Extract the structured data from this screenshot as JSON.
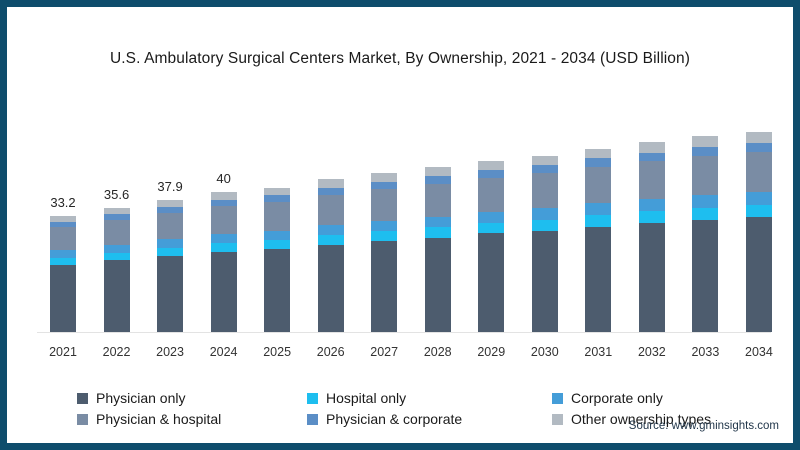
{
  "frame": {
    "border_color": "#0E4D6C",
    "background": "#FFFFFF"
  },
  "header": {
    "title": "U.S. Ambulatory Surgical Centers Market, By Ownership, 2021 - 2034 (USD Billion)"
  },
  "footer": {
    "source": "Source: www.gminsights.com"
  },
  "chart_data": {
    "type": "bar",
    "stacked": true,
    "title": "U.S. Ambulatory Surgical Centers Market, By Ownership, 2021 - 2034 (USD Billion)",
    "units": "USD Billion",
    "grid": false,
    "legend_position": "bottom",
    "ylim": [
      0,
      60
    ],
    "categories": [
      "2021",
      "2022",
      "2023",
      "2024",
      "2025",
      "2026",
      "2027",
      "2028",
      "2029",
      "2030",
      "2031",
      "2032",
      "2033",
      "2034"
    ],
    "bar_total_labels": [
      "33.2",
      "35.6",
      "37.9",
      "40",
      "",
      "",
      "",
      "",
      "",
      "",
      "",
      "",
      "",
      ""
    ],
    "estimated_totals": [
      33.2,
      35.6,
      37.9,
      40,
      41.3,
      43.5,
      45.3,
      47,
      49,
      50.5,
      52.4,
      54.2,
      55.9,
      57.1
    ],
    "series": [
      {
        "name": "Physician only",
        "color": "#4D5C6E",
        "values": [
          19.1,
          20.5,
          21.8,
          23.0,
          23.7,
          25.0,
          26.0,
          27.0,
          28.2,
          29.0,
          30.1,
          31.2,
          32.1,
          32.8
        ]
      },
      {
        "name": "Hospital only",
        "color": "#1EBEEF",
        "values": [
          2.0,
          2.2,
          2.3,
          2.4,
          2.5,
          2.7,
          2.8,
          2.9,
          3.0,
          3.1,
          3.2,
          3.3,
          3.4,
          3.5
        ]
      },
      {
        "name": "Corporate only",
        "color": "#449DD8",
        "values": [
          2.2,
          2.3,
          2.5,
          2.6,
          2.7,
          2.9,
          3.0,
          3.1,
          3.2,
          3.3,
          3.5,
          3.6,
          3.7,
          3.8
        ]
      },
      {
        "name": "Physician & hospital",
        "color": "#7A8CA4",
        "values": [
          6.6,
          7.0,
          7.5,
          7.9,
          8.2,
          8.6,
          9.0,
          9.3,
          9.7,
          10.0,
          10.4,
          10.7,
          11.1,
          11.3
        ]
      },
      {
        "name": "Physician & corporate",
        "color": "#5B8EC6",
        "values": [
          1.5,
          1.6,
          1.7,
          1.8,
          1.9,
          2.0,
          2.1,
          2.2,
          2.3,
          2.3,
          2.4,
          2.5,
          2.6,
          2.6
        ]
      },
      {
        "name": "Other ownership types",
        "color": "#B2BAC2",
        "values": [
          1.8,
          1.9,
          2.0,
          2.2,
          2.2,
          2.4,
          2.4,
          2.5,
          2.6,
          2.7,
          2.8,
          2.9,
          3.0,
          3.1
        ]
      }
    ]
  }
}
